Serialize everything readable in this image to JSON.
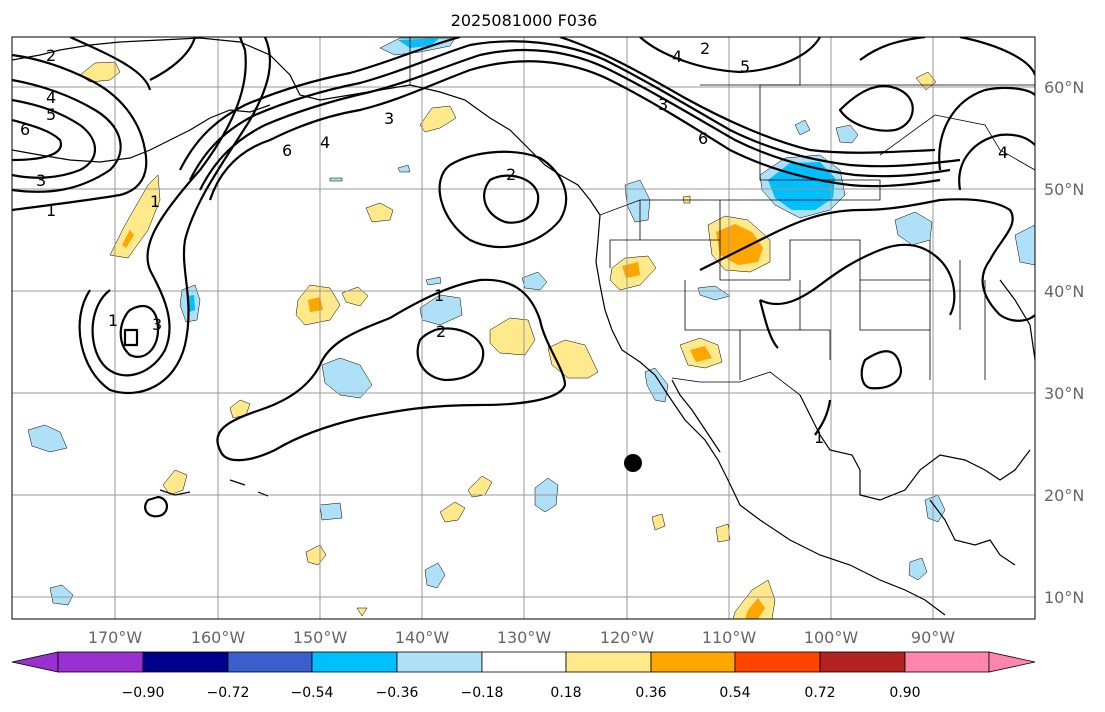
{
  "title": "2025081000 F036",
  "lon_labels": [
    "170°W",
    "160°W",
    "150°W",
    "140°W",
    "130°W",
    "120°W",
    "110°W",
    "100°W",
    "90°W"
  ],
  "lat_labels": [
    "60°N",
    "50°N",
    "40°N",
    "30°N",
    "20°N",
    "10°N"
  ],
  "colorbar": {
    "ticks": [
      "−0.90",
      "−0.72",
      "−0.54",
      "−0.36",
      "−0.18",
      "0.18",
      "0.36",
      "0.54",
      "0.72",
      "0.90"
    ],
    "colors": [
      "#9b30d0",
      "#00008b",
      "#3a5fcd",
      "#00bfff",
      "#aee0f8",
      "#ffffff",
      "#ffe98a",
      "#ffa500",
      "#ff4500",
      "#b22222",
      "#ff85ad"
    ]
  },
  "contour_labels": [
    "2",
    "4",
    "5",
    "6",
    "3",
    "1",
    "6",
    "4",
    "3",
    "2",
    "1",
    "2",
    "2",
    "4",
    "5",
    "6",
    "3",
    "1",
    "3",
    "1",
    "4",
    "1"
  ],
  "marker": "storm-center-dot"
}
